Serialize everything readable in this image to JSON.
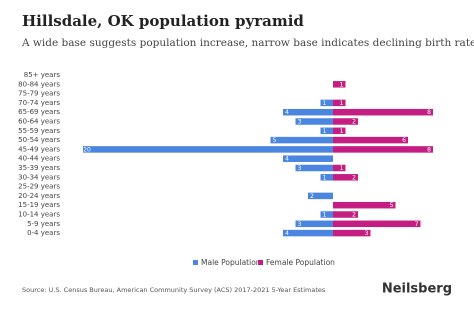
{
  "chart_data": {
    "type": "pyramid",
    "title": "Hillsdale, OK population pyramid",
    "subtitle": "A wide base suggests population increase, narrow base indicates declining birth rates.",
    "categories": [
      "85+ years",
      "80-84 years",
      "75-79 years",
      "70-74 years",
      "65-69 years",
      "60-64 years",
      "55-59 years",
      "50-54 years",
      "45-49 years",
      "40-44 years",
      "35-39 years",
      "30-34 years",
      "25-29 years",
      "20-24 years",
      "15-19 years",
      "10-14 years",
      "5-9 years",
      "0-4 years"
    ],
    "series": [
      {
        "name": "Male Population",
        "color": "#4a86e0",
        "values": [
          0,
          0,
          0,
          1,
          4,
          3,
          1,
          5,
          20,
          4,
          3,
          1,
          0,
          2,
          0,
          1,
          3,
          4
        ]
      },
      {
        "name": "Female Population",
        "color": "#c41e83",
        "values": [
          0,
          1,
          0,
          1,
          8,
          2,
          1,
          6,
          8,
          0,
          1,
          2,
          0,
          0,
          5,
          2,
          7,
          3
        ]
      }
    ],
    "source": "Source: U.S. Census Bureau, American Community Survey (ACS) 2017-2021 5-Year Estimates",
    "brand": "Neilsberg"
  }
}
